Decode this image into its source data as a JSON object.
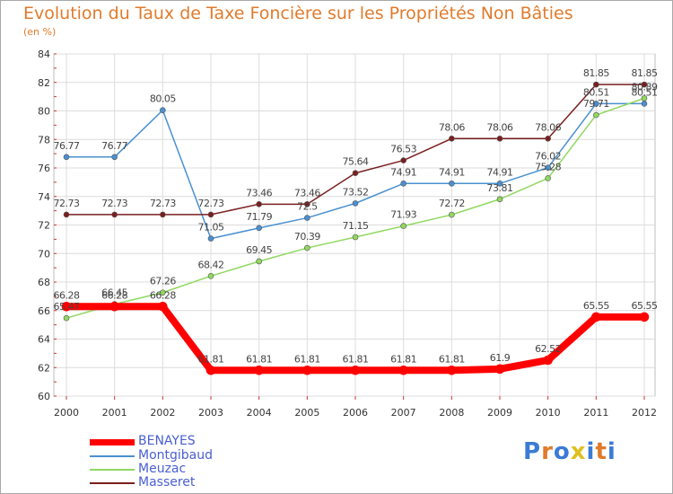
{
  "title": "Evolution du Taux de Taxe Foncière sur les Propriétés Non Bâties",
  "unit_label": "(en %)",
  "logo_text": "Proxiti",
  "chart_data": {
    "type": "line",
    "x": [
      "2000",
      "2001",
      "2002",
      "2003",
      "2004",
      "2005",
      "2006",
      "2007",
      "2008",
      "2009",
      "2010",
      "2011",
      "2012"
    ],
    "ylim": [
      60,
      84
    ],
    "yticks": [
      60,
      62,
      64,
      66,
      68,
      70,
      72,
      74,
      76,
      78,
      80,
      82,
      84
    ],
    "grid": true,
    "legend_position": "bottom-left",
    "series": [
      {
        "name": "BENAYES",
        "color": "#ff0000",
        "values": [
          66.28,
          66.28,
          66.28,
          61.81,
          61.81,
          61.81,
          61.81,
          61.81,
          61.81,
          61.9,
          62.52,
          65.55,
          65.55
        ],
        "labels": [
          "66.28",
          "66.28",
          "66.28",
          "61.81",
          "61.81",
          "61.81",
          "61.81",
          "61.81",
          "61.81",
          "61.9",
          "62.52",
          "65.55",
          "65.55"
        ]
      },
      {
        "name": "Montgibaud",
        "color": "#4a90d0",
        "values": [
          76.77,
          76.77,
          80.05,
          71.05,
          71.79,
          72.5,
          73.52,
          74.91,
          74.91,
          74.91,
          76.02,
          80.51,
          80.51
        ],
        "labels": [
          "76.77",
          "76.77",
          "80.05",
          "71.05",
          "71.79",
          "72.5",
          "73.52",
          "74.91",
          "74.91",
          "74.91",
          "76.02",
          "80.51",
          "80.51"
        ]
      },
      {
        "name": "Meuzac",
        "color": "#90d860",
        "values": [
          65.47,
          66.45,
          67.26,
          68.42,
          69.45,
          70.39,
          71.15,
          71.93,
          72.72,
          73.81,
          75.28,
          79.71,
          80.89
        ],
        "labels": [
          "65.47",
          "66.45",
          "67.26",
          "68.42",
          "69.45",
          "70.39",
          "71.15",
          "71.93",
          "72.72",
          "73.81",
          "75.28",
          "79.71",
          "80.89"
        ]
      },
      {
        "name": "Masseret",
        "color": "#7a1f1f",
        "values": [
          72.73,
          72.73,
          72.73,
          72.73,
          73.46,
          73.46,
          75.64,
          76.53,
          78.06,
          78.06,
          78.06,
          81.85,
          81.85
        ],
        "labels": [
          "72.73",
          "72.73",
          "72.73",
          "72.73",
          "73.46",
          "73.46",
          "75.64",
          "76.53",
          "78.06",
          "78.06",
          "78.06",
          "81.85",
          "81.85"
        ]
      }
    ]
  }
}
